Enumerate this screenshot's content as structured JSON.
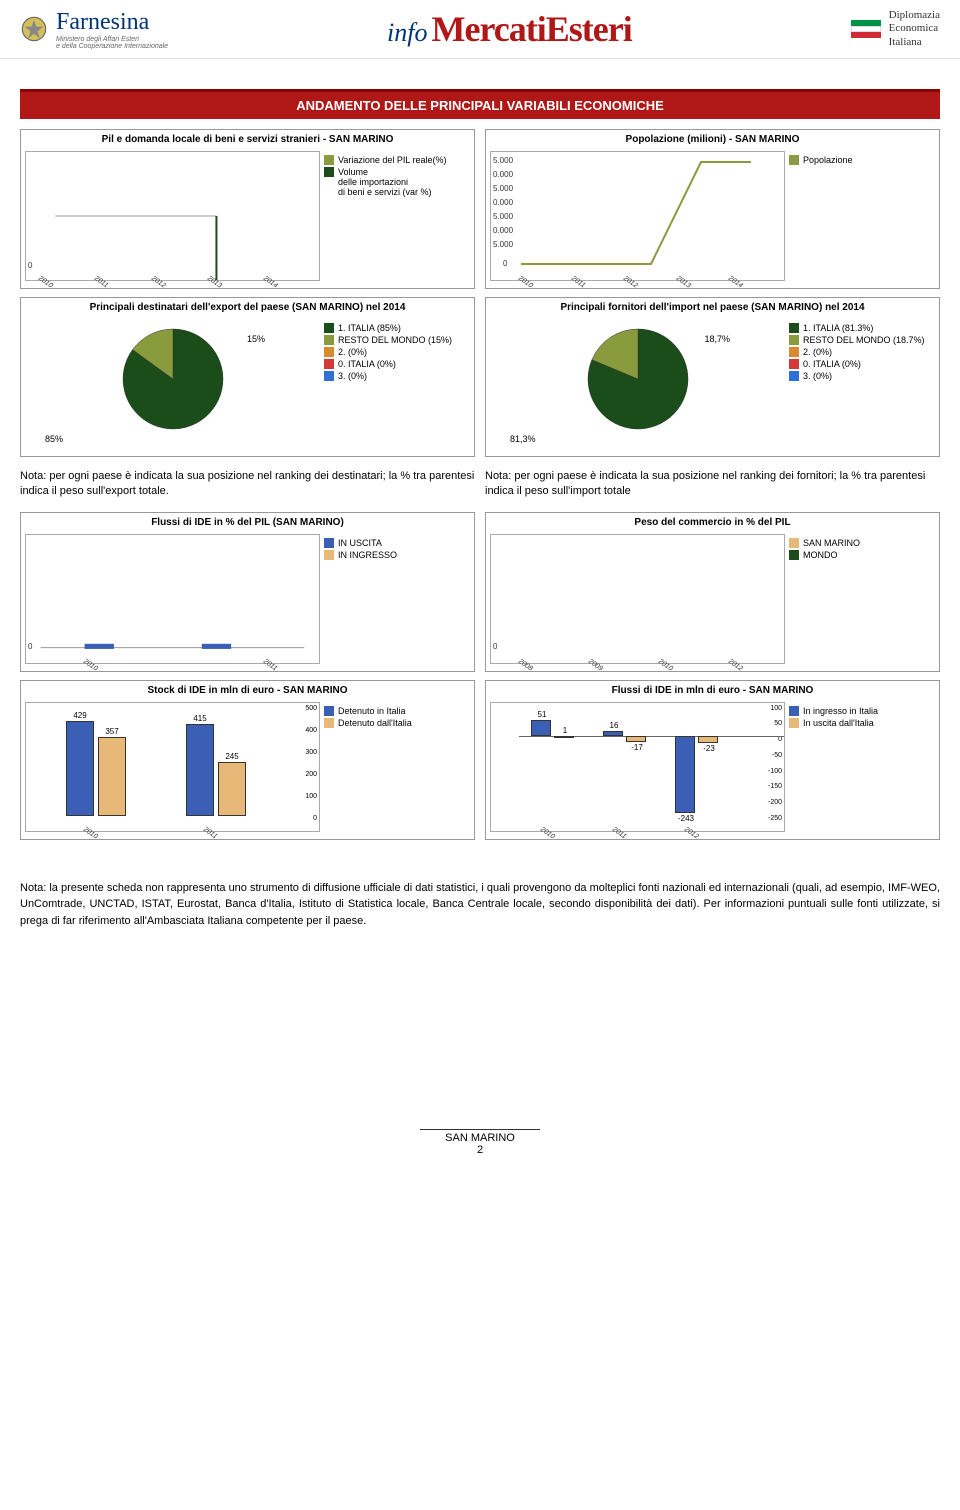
{
  "header": {
    "farnesina": "Farnesina",
    "farnesina_sub": "Ministero degli Affari Esteri\ne della Cooperazione Internazionale",
    "info": "info",
    "mercati": "MercatiEsteri",
    "dip": "Diplomazia\nEconomica\nItaliana"
  },
  "colors": {
    "red_bar": "#b01818",
    "red_dark": "#8b0000",
    "navy": "#003478",
    "dark_green": "#1a4d1a",
    "olive": "#8a9b3e",
    "orange": "#d68b2f",
    "blue": "#3a5fb5",
    "peach": "#e8b878",
    "tricolor_green": "#009246",
    "tricolor_white": "#ffffff",
    "tricolor_red": "#ce2b37"
  },
  "section_title": "ANDAMENTO DELLE PRINCIPALI VARIABILI ECONOMICHE",
  "charts": {
    "pil": {
      "title": "Pil e domanda locale di beni e servizi stranieri - SAN MARINO",
      "years": [
        "2010",
        "2011",
        "2012",
        "2013",
        "2014"
      ],
      "legend": [
        "Variazione del PIL reale(%)",
        "Volume\ndelle importazioni\ndi beni e servizi (var %)"
      ],
      "legend_colors": [
        "#8a9b3e",
        "#1a4d1a"
      ]
    },
    "pop": {
      "title": "Popolazione (milioni) - SAN MARINO",
      "years": [
        "2010",
        "2011",
        "2012",
        "2013",
        "2014"
      ],
      "ylabels": [
        "5.000",
        "0.000",
        "5.000",
        "0.000",
        "5.000",
        "0.000",
        "5.000"
      ],
      "legend": [
        "Popolazione"
      ],
      "legend_colors": [
        "#8a9b3e"
      ]
    },
    "export_pie": {
      "title": "Principali destinatari dell'export del paese (SAN MARINO) nel 2014",
      "slices": [
        {
          "label": "85%",
          "legend": "1. ITALIA (85%)",
          "color": "#1a4d1a",
          "pct": 85
        },
        {
          "label": "15%",
          "legend": "RESTO DEL MONDO (15%)",
          "color": "#8a9b3e",
          "pct": 15
        }
      ],
      "extra_legend": [
        "2. (0%)",
        "0. ITALIA (0%)",
        "3. (0%)"
      ],
      "extra_colors": [
        "#d68b2f",
        "#d63838",
        "#2f6fd6"
      ]
    },
    "import_pie": {
      "title": "Principali fornitori dell'import nel paese (SAN MARINO) nel 2014",
      "slices": [
        {
          "label": "81,3%",
          "legend": "1. ITALIA (81.3%)",
          "color": "#1a4d1a",
          "pct": 81.3
        },
        {
          "label": "18,7%",
          "legend": "RESTO DEL MONDO (18.7%)",
          "color": "#8a9b3e",
          "pct": 18.7
        }
      ],
      "extra_legend": [
        "2. (0%)",
        "0. ITALIA (0%)",
        "3. (0%)"
      ],
      "extra_colors": [
        "#d68b2f",
        "#d63838",
        "#2f6fd6"
      ]
    },
    "ide_pct": {
      "title": "Flussi di IDE in % del PIL (SAN MARINO)",
      "years": [
        "2010",
        "2011"
      ],
      "legend": [
        "IN USCITA",
        "IN INGRESSO"
      ],
      "legend_colors": [
        "#3a5fb5",
        "#e8b878"
      ]
    },
    "commercio": {
      "title": "Peso del commercio in % del PIL",
      "years": [
        "2008",
        "2009",
        "2010",
        "2012"
      ],
      "legend": [
        "SAN MARINO",
        "MONDO"
      ],
      "legend_colors": [
        "#e8b878",
        "#1a4d1a"
      ]
    },
    "stock_ide": {
      "title": "Stock di IDE in mln di euro - SAN MARINO",
      "years": [
        "2010",
        "2011"
      ],
      "ylim": [
        0,
        500
      ],
      "ystep": 100,
      "series": [
        {
          "name": "Detenuto in Italia",
          "color": "#3a5fb5",
          "values": [
            429,
            415
          ]
        },
        {
          "name": "Detenuto dall'Italia",
          "color": "#e8b878",
          "values": [
            357,
            245
          ]
        }
      ]
    },
    "flussi_ide": {
      "title": "Flussi di IDE in mln di euro - SAN MARINO",
      "years": [
        "2010",
        "2011",
        "2012"
      ],
      "ylim": [
        -250,
        100
      ],
      "ystep": 50,
      "series": [
        {
          "name": "In ingresso in Italia",
          "color": "#3a5fb5",
          "values": [
            51,
            16,
            -243
          ]
        },
        {
          "name": "In uscita dall'Italia",
          "color": "#e8b878",
          "values": [
            1,
            -17,
            -23
          ]
        }
      ]
    }
  },
  "notes": {
    "export": "Nota: per ogni paese è indicata la sua posizione nel ranking dei destinatari; la % tra parentesi indica il peso sull'export totale.",
    "import": "Nota: per ogni paese è indicata la sua posizione nel ranking dei fornitori; la % tra parentesi indica il peso sull'import totale",
    "footer": "Nota: la presente scheda non rappresenta uno strumento di diffusione ufficiale di dati statistici, i quali provengono da molteplici fonti nazionali ed internazionali (quali, ad esempio, IMF-WEO, UnComtrade, UNCTAD, ISTAT, Eurostat, Banca d'Italia, Istituto di Statistica locale, Banca Centrale locale, secondo disponibilità dei dati). Per informazioni puntuali sulle fonti utilizzate, si prega di far riferimento all'Ambasciata Italiana competente per il paese."
  },
  "footer": {
    "country": "SAN MARINO",
    "page": "2"
  }
}
